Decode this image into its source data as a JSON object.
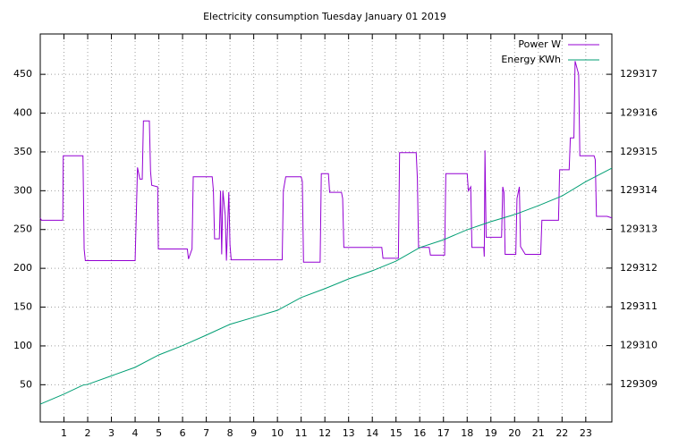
{
  "chart_data": {
    "type": "line",
    "title": "Electricity consumption Tuesday January 01 2019",
    "xlim": [
      0,
      24.1
    ],
    "xticks": [
      1,
      2,
      3,
      4,
      5,
      6,
      7,
      8,
      9,
      10,
      11,
      12,
      13,
      14,
      15,
      16,
      17,
      18,
      19,
      20,
      21,
      22,
      23
    ],
    "ylim": [
      2,
      502
    ],
    "yticks": [
      50,
      100,
      150,
      200,
      250,
      300,
      350,
      400,
      450
    ],
    "y2lim": [
      129308.03,
      129318.04
    ],
    "y2ticks": [
      129309,
      129310,
      129311,
      129312,
      129313,
      129314,
      129315,
      129316,
      129317
    ],
    "grid": true,
    "legend": "top-right",
    "series": [
      {
        "name": "Power W",
        "color": "#9400d3",
        "x": [
          0,
          0.05,
          0.95,
          0.97,
          1.8,
          1.82,
          1.85,
          1.9,
          4.0,
          4.05,
          4.1,
          4.2,
          4.3,
          4.35,
          4.6,
          4.65,
          4.7,
          4.95,
          4.98,
          6.2,
          6.25,
          6.4,
          6.45,
          7.25,
          7.3,
          7.35,
          7.55,
          7.6,
          7.65,
          7.7,
          7.8,
          7.85,
          7.95,
          8.0,
          8.05,
          10.2,
          10.25,
          10.35,
          11.0,
          11.05,
          11.1,
          11.8,
          11.85,
          12.15,
          12.2,
          12.7,
          12.75,
          12.8,
          14.4,
          14.45,
          15.1,
          15.15,
          15.85,
          15.9,
          15.95,
          16.4,
          16.45,
          17.05,
          17.1,
          18.0,
          18.05,
          18.15,
          18.2,
          18.7,
          18.72,
          18.75,
          18.8,
          19.45,
          19.5,
          19.55,
          19.6,
          20.05,
          20.1,
          20.2,
          20.25,
          20.45,
          21.1,
          21.15,
          21.85,
          21.9,
          22.3,
          22.35,
          22.5,
          22.55,
          22.7,
          22.75,
          23.35,
          23.4,
          23.45,
          23.9,
          24.1
        ],
        "values": [
          265,
          262,
          262,
          345,
          345,
          300,
          225,
          210,
          210,
          270,
          330,
          315,
          315,
          390,
          390,
          325,
          307,
          305,
          225,
          225,
          212,
          225,
          318,
          318,
          300,
          238,
          238,
          300,
          218,
          300,
          268,
          210,
          298,
          230,
          211,
          211,
          300,
          318,
          318,
          312,
          208,
          208,
          322,
          322,
          298,
          298,
          290,
          227,
          227,
          213,
          213,
          349,
          349,
          316,
          227,
          227,
          217,
          217,
          322,
          322,
          300,
          305,
          227,
          227,
          215,
          352,
          240,
          240,
          305,
          298,
          218,
          218,
          290,
          305,
          228,
          218,
          218,
          262,
          262,
          327,
          327,
          368,
          368,
          467,
          450,
          345,
          345,
          340,
          267,
          267,
          265
        ]
      },
      {
        "name": "Energy KWh",
        "color": "#009e73",
        "axis": "y2",
        "x": [
          0,
          1,
          1.8,
          2,
          4,
          5,
          6,
          7,
          8,
          9,
          10,
          11,
          12,
          13,
          14,
          15,
          16,
          17,
          18,
          19,
          20,
          21,
          22,
          23,
          24.1
        ],
        "values": [
          129308.49,
          129308.75,
          129308.98,
          129309.0,
          129309.44,
          129309.76,
          129310.0,
          129310.27,
          129310.55,
          129310.73,
          129310.91,
          129311.24,
          129311.47,
          129311.72,
          129311.93,
          129312.18,
          129312.53,
          129312.73,
          129312.99,
          129313.2,
          129313.38,
          129313.61,
          129313.86,
          129314.23,
          129314.58
        ]
      }
    ]
  }
}
